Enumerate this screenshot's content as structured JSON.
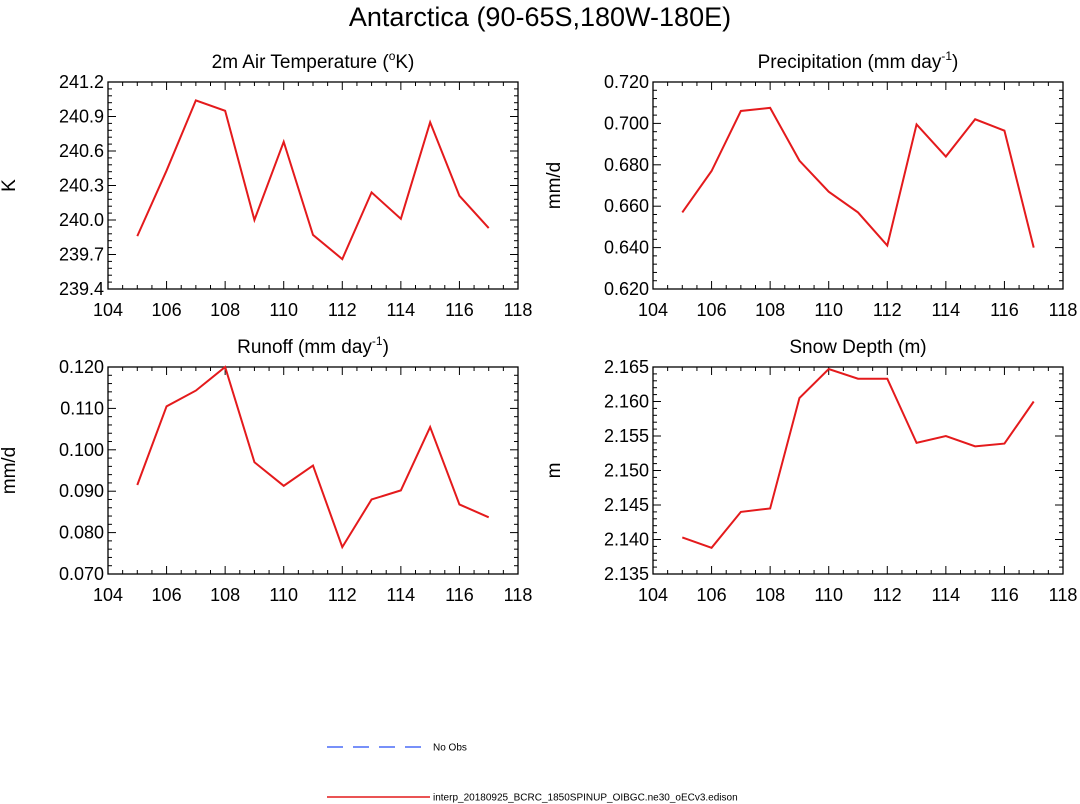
{
  "figure": {
    "title": "Antarctica (90-65S,180W-180E)"
  },
  "chart_data": [
    {
      "type": "line",
      "title_main": "2m Air Temperature (",
      "title_sup": "o",
      "title_end": "K)",
      "ylabel": "K",
      "x": [
        105,
        106,
        107,
        108,
        109,
        110,
        111,
        112,
        113,
        114,
        115,
        116,
        117
      ],
      "series": [
        {
          "name": "interp_20180925_BCRC_1850SPINUP_OIBGC.ne30_oECv3.edison",
          "color": "#e41a1c",
          "values": [
            239.86,
            240.43,
            241.04,
            240.95,
            240.0,
            240.68,
            239.87,
            239.66,
            240.24,
            240.01,
            240.85,
            240.21,
            239.93
          ]
        }
      ],
      "xlim": [
        104,
        118
      ],
      "xticks": [
        104,
        106,
        108,
        110,
        112,
        114,
        116,
        118
      ],
      "ylim": [
        239.4,
        241.2
      ],
      "yticks": [
        239.4,
        239.7,
        240.0,
        240.3,
        240.6,
        240.9,
        241.2
      ],
      "ytick_labels": [
        "239.4",
        "239.7",
        "240.0",
        "240.3",
        "240.6",
        "240.9",
        "241.2"
      ]
    },
    {
      "type": "line",
      "title_main": "Precipitation (mm day",
      "title_sup": "-1",
      "title_end": ")",
      "ylabel": "mm/d",
      "x": [
        105,
        106,
        107,
        108,
        109,
        110,
        111,
        112,
        113,
        114,
        115,
        116,
        117
      ],
      "series": [
        {
          "name": "interp_20180925_BCRC_1850SPINUP_OIBGC.ne30_oECv3.edison",
          "color": "#e41a1c",
          "values": [
            0.657,
            0.677,
            0.706,
            0.7075,
            0.682,
            0.667,
            0.657,
            0.641,
            0.6995,
            0.684,
            0.702,
            0.6965,
            0.64
          ]
        }
      ],
      "xlim": [
        104,
        118
      ],
      "xticks": [
        104,
        106,
        108,
        110,
        112,
        114,
        116,
        118
      ],
      "ylim": [
        0.62,
        0.72
      ],
      "yticks": [
        0.62,
        0.64,
        0.66,
        0.68,
        0.7,
        0.72
      ],
      "ytick_labels": [
        "0.620",
        "0.640",
        "0.660",
        "0.680",
        "0.700",
        "0.720"
      ]
    },
    {
      "type": "line",
      "title_main": "Runoff (mm day",
      "title_sup": "-1",
      "title_end": ")",
      "ylabel": "mm/d",
      "x": [
        105,
        106,
        107,
        108,
        109,
        110,
        111,
        112,
        113,
        114,
        115,
        116,
        117
      ],
      "series": [
        {
          "name": "interp_20180925_BCRC_1850SPINUP_OIBGC.ne30_oECv3.edison",
          "color": "#e41a1c",
          "values": [
            0.0915,
            0.1105,
            0.1143,
            0.12,
            0.097,
            0.0913,
            0.0962,
            0.0765,
            0.088,
            0.0902,
            0.1055,
            0.0868,
            0.0837
          ]
        }
      ],
      "xlim": [
        104,
        118
      ],
      "xticks": [
        104,
        106,
        108,
        110,
        112,
        114,
        116,
        118
      ],
      "ylim": [
        0.07,
        0.12
      ],
      "yticks": [
        0.07,
        0.08,
        0.09,
        0.1,
        0.11,
        0.12
      ],
      "ytick_labels": [
        "0.070",
        "0.080",
        "0.090",
        "0.100",
        "0.110",
        "0.120"
      ]
    },
    {
      "type": "line",
      "title_main": "Snow Depth (m)",
      "title_sup": "",
      "title_end": "",
      "ylabel": "m",
      "x": [
        105,
        106,
        107,
        108,
        109,
        110,
        111,
        112,
        113,
        114,
        115,
        116,
        117
      ],
      "series": [
        {
          "name": "interp_20180925_BCRC_1850SPINUP_OIBGC.ne30_oECv3.edison",
          "color": "#e41a1c",
          "values": [
            2.1403,
            2.1388,
            2.144,
            2.1445,
            2.1605,
            2.1647,
            2.1633,
            2.1633,
            2.154,
            2.155,
            2.1535,
            2.1539,
            2.16
          ]
        }
      ],
      "xlim": [
        104,
        118
      ],
      "xticks": [
        104,
        106,
        108,
        110,
        112,
        114,
        116,
        118
      ],
      "ylim": [
        2.135,
        2.165
      ],
      "yticks": [
        2.135,
        2.14,
        2.145,
        2.15,
        2.155,
        2.16,
        2.165
      ],
      "ytick_labels": [
        "2.135",
        "2.140",
        "2.145",
        "2.150",
        "2.155",
        "2.160",
        "2.165"
      ]
    }
  ],
  "legend": {
    "entries": [
      {
        "label": "No Obs",
        "color": "#4a6cf7",
        "dash": "dashed"
      },
      {
        "label": "interp_20180925_BCRC_1850SPINUP_OIBGC.ne30_oECv3.edison",
        "color": "#e41a1c",
        "dash": "solid"
      }
    ]
  }
}
